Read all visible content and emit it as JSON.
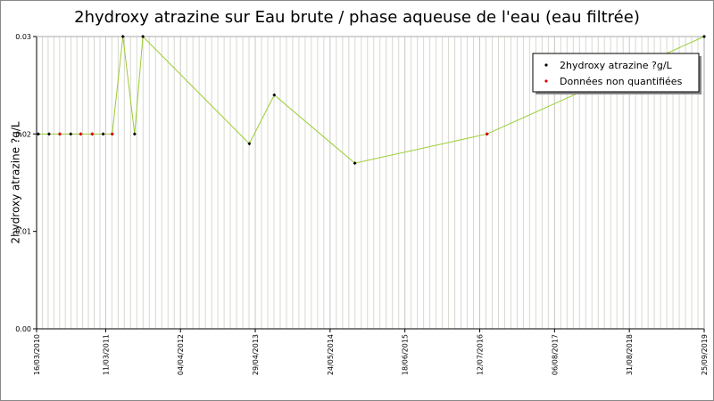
{
  "chart_data": {
    "type": "line",
    "title": "2hydroxy atrazine sur Eau brute / phase aqueuse de l'eau (eau filtrée)",
    "y_label": "2hydroxy atrazine ?g/L",
    "x": [
      "2010-03-25",
      "2010-05-20",
      "2010-07-15",
      "2010-09-10",
      "2010-11-01",
      "2010-12-31",
      "2011-02-26",
      "2011-04-14",
      "2011-06-09",
      "2011-08-09",
      "2011-09-21",
      "2013-03-29",
      "2013-08-06",
      "2014-09-30",
      "2016-08-19",
      "2019-09-25"
    ],
    "series": [
      {
        "name": "2hydroxy atrazine ?g/L",
        "color": "#9acd32",
        "marker_color": "#000000",
        "values": [
          0.02,
          0.02,
          0.02,
          0.02,
          0.02,
          0.02,
          0.02,
          0.02,
          0.03,
          0.02,
          0.03,
          0.019,
          0.024,
          0.017,
          0.02,
          0.03
        ]
      },
      {
        "name": "Données non quantifiées",
        "color": "#e00000",
        "values": [
          null,
          null,
          0.02,
          null,
          0.02,
          0.02,
          null,
          0.02,
          null,
          null,
          null,
          null,
          null,
          null,
          0.02,
          null
        ]
      }
    ],
    "xlim": [
      "2010-03-16",
      "2019-09-25"
    ],
    "xticks": [
      {
        "value": "2010-03-16",
        "label": "16/03/2010"
      },
      {
        "value": "2011-03-11",
        "label": "11/03/2011"
      },
      {
        "value": "2012-04-04",
        "label": "04/04/2012"
      },
      {
        "value": "2013-04-29",
        "label": "29/04/2013"
      },
      {
        "value": "2014-05-24",
        "label": "24/05/2014"
      },
      {
        "value": "2015-06-18",
        "label": "18/06/2015"
      },
      {
        "value": "2016-07-12",
        "label": "12/07/2016"
      },
      {
        "value": "2017-08-06",
        "label": "06/08/2017"
      },
      {
        "value": "2018-08-31",
        "label": "31/08/2018"
      },
      {
        "value": "2019-09-25",
        "label": "25/09/2019"
      }
    ],
    "ylim": [
      0,
      0.03
    ],
    "yticks": [
      {
        "value": 0,
        "label": "0.00"
      },
      0.01,
      0.02,
      0.03
    ],
    "grid": true,
    "legend": "top-right"
  }
}
